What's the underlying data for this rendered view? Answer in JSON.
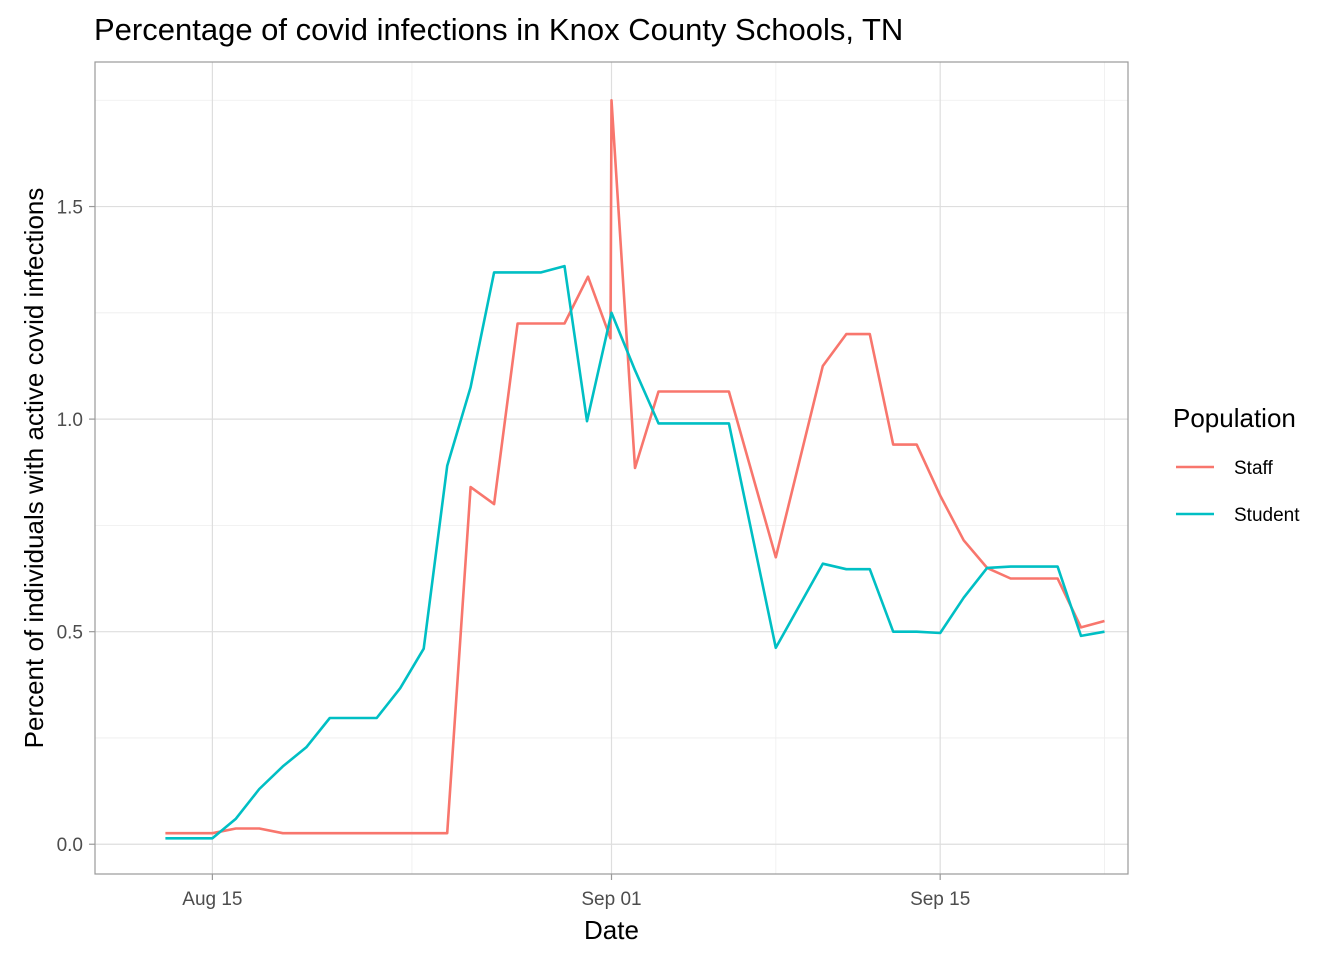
{
  "chart_data": {
    "type": "line",
    "title": "Percentage of covid infections in Knox County Schools, TN",
    "xlabel": "Date",
    "ylabel": "Percent of individuals with active covid infections",
    "x_ticks": [
      {
        "date": "2021-08-15",
        "label": "Aug 15"
      },
      {
        "date": "2021-09-01",
        "label": "Sep 01"
      },
      {
        "date": "2021-09-15",
        "label": "Sep 15"
      }
    ],
    "y_ticks": [
      {
        "value": 0.0,
        "label": "0.0"
      },
      {
        "value": 0.5,
        "label": "0.5"
      },
      {
        "value": 1.0,
        "label": "1.0"
      },
      {
        "value": 1.5,
        "label": "1.5"
      }
    ],
    "xlim": [
      "2021-08-10",
      "2021-09-23"
    ],
    "ylim": [
      -0.07,
      1.84
    ],
    "grid": true,
    "legend": {
      "title": "Population",
      "position": "right"
    },
    "series": [
      {
        "name": "Staff",
        "color": "#F8766D",
        "points": [
          [
            "2021-08-13",
            0.026
          ],
          [
            "2021-08-14",
            0.026
          ],
          [
            "2021-08-15",
            0.026
          ],
          [
            "2021-08-16",
            0.037
          ],
          [
            "2021-08-17",
            0.037
          ],
          [
            "2021-08-18",
            0.026
          ],
          [
            "2021-08-19",
            0.026
          ],
          [
            "2021-08-20",
            0.026
          ],
          [
            "2021-08-21",
            0.026
          ],
          [
            "2021-08-22",
            0.026
          ],
          [
            "2021-08-23",
            0.026
          ],
          [
            "2021-08-24",
            0.026
          ],
          [
            "2021-08-25",
            0.026
          ],
          [
            "2021-08-26",
            0.84
          ],
          [
            "2021-08-27",
            0.8
          ],
          [
            "2021-08-28",
            1.225
          ],
          [
            "2021-08-29",
            1.225
          ],
          [
            "2021-08-30",
            1.225
          ],
          [
            "2021-08-31",
            1.335
          ],
          [
            "2021-08-31T23:00",
            1.19
          ],
          [
            "2021-09-01",
            1.75
          ],
          [
            "2021-09-02",
            0.885
          ],
          [
            "2021-09-03",
            1.065
          ],
          [
            "2021-09-04",
            1.065
          ],
          [
            "2021-09-05",
            1.065
          ],
          [
            "2021-09-06",
            1.065
          ],
          [
            "2021-09-08",
            0.675
          ],
          [
            "2021-09-10",
            1.125
          ],
          [
            "2021-09-11",
            1.2
          ],
          [
            "2021-09-12",
            1.2
          ],
          [
            "2021-09-13",
            0.94
          ],
          [
            "2021-09-14",
            0.94
          ],
          [
            "2021-09-15",
            0.82
          ],
          [
            "2021-09-16",
            0.715
          ],
          [
            "2021-09-17",
            0.65
          ],
          [
            "2021-09-18",
            0.625
          ],
          [
            "2021-09-19",
            0.625
          ],
          [
            "2021-09-20",
            0.625
          ],
          [
            "2021-09-21",
            0.51
          ],
          [
            "2021-09-22",
            0.525
          ]
        ]
      },
      {
        "name": "Student",
        "color": "#00BFC4",
        "points": [
          [
            "2021-08-13",
            0.014
          ],
          [
            "2021-08-14",
            0.014
          ],
          [
            "2021-08-15",
            0.014
          ],
          [
            "2021-08-16",
            0.06
          ],
          [
            "2021-08-17",
            0.13
          ],
          [
            "2021-08-18",
            0.183
          ],
          [
            "2021-08-19",
            0.228
          ],
          [
            "2021-08-20",
            0.297
          ],
          [
            "2021-08-21",
            0.297
          ],
          [
            "2021-08-22",
            0.297
          ],
          [
            "2021-08-23",
            0.367
          ],
          [
            "2021-08-24",
            0.46
          ],
          [
            "2021-08-25",
            0.89
          ],
          [
            "2021-08-26",
            1.075
          ],
          [
            "2021-08-27",
            1.345
          ],
          [
            "2021-08-28",
            1.345
          ],
          [
            "2021-08-29",
            1.345
          ],
          [
            "2021-08-30",
            1.36
          ],
          [
            "2021-08-30T23:00",
            0.995
          ],
          [
            "2021-09-01",
            1.25
          ],
          [
            "2021-09-02",
            1.115
          ],
          [
            "2021-09-03",
            0.99
          ],
          [
            "2021-09-04",
            0.99
          ],
          [
            "2021-09-05",
            0.99
          ],
          [
            "2021-09-06",
            0.99
          ],
          [
            "2021-09-08",
            0.462
          ],
          [
            "2021-09-10",
            0.66
          ],
          [
            "2021-09-11",
            0.647
          ],
          [
            "2021-09-12",
            0.647
          ],
          [
            "2021-09-13",
            0.5
          ],
          [
            "2021-09-14",
            0.5
          ],
          [
            "2021-09-15",
            0.497
          ],
          [
            "2021-09-16",
            0.58
          ],
          [
            "2021-09-17",
            0.65
          ],
          [
            "2021-09-18",
            0.653
          ],
          [
            "2021-09-19",
            0.653
          ],
          [
            "2021-09-20",
            0.653
          ],
          [
            "2021-09-21",
            0.49
          ],
          [
            "2021-09-22",
            0.5
          ]
        ]
      }
    ]
  }
}
